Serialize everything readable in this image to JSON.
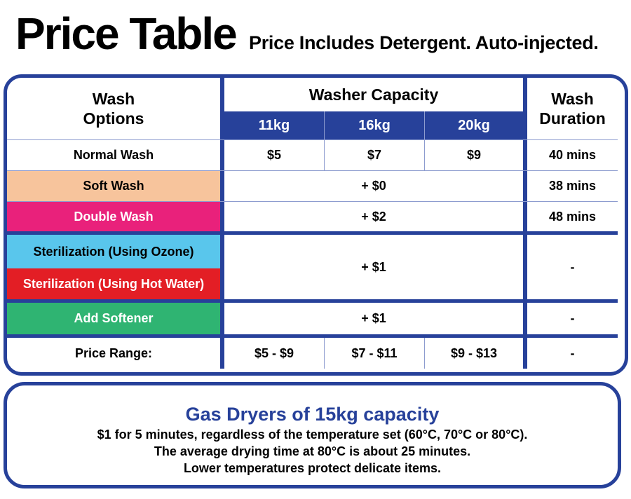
{
  "header": {
    "title": "Price Table",
    "subtitle": "Price Includes Detergent. Auto-injected."
  },
  "table": {
    "col_wash_options": "Wash\nOptions",
    "col_capacity": "Washer Capacity",
    "col_duration": "Wash\nDuration",
    "capacities": [
      "11kg",
      "16kg",
      "20kg"
    ],
    "rows": {
      "normal": {
        "label": "Normal Wash",
        "prices": [
          "$5",
          "$7",
          "$9"
        ],
        "duration": "40 mins"
      },
      "soft": {
        "label": "Soft Wash",
        "price": "+ $0",
        "duration": "38 mins",
        "color": "#f7c49c"
      },
      "double": {
        "label": "Double Wash",
        "price": "+ $2",
        "duration": "48 mins",
        "color": "#e9217b"
      },
      "ozone": {
        "label": "Sterilization (Using Ozone)",
        "color": "#59c6ec"
      },
      "hotwater": {
        "label": "Sterilization (Using Hot Water)",
        "color": "#e31e25"
      },
      "sterilization": {
        "price": "+ $1",
        "duration": "-"
      },
      "softener": {
        "label": "Add Softener",
        "price": "+ $1",
        "duration": "-",
        "color": "#2fb472"
      },
      "range": {
        "label": "Price Range:",
        "prices": [
          "$5 - $9",
          "$7 - $11",
          "$9 - $13"
        ],
        "duration": "-"
      }
    },
    "border_color": "#27419a"
  },
  "dryer": {
    "title": "Gas Dryers of 15kg capacity",
    "line1": "$1 for 5 minutes, regardless of the temperature set (60°C, 70°C or 80°C).",
    "line2": "The average drying time at 80°C is about 25 minutes.",
    "line3": "Lower temperatures protect delicate items."
  }
}
